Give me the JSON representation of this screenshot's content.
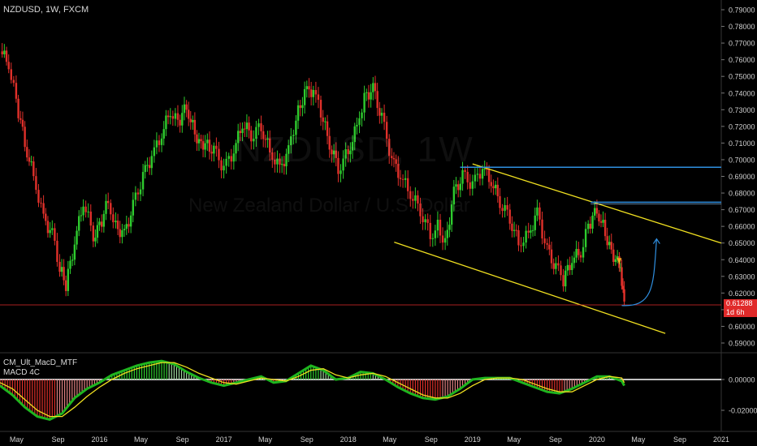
{
  "header": {
    "symbol_line": "NZDUSD, 1W, FXCM",
    "watermark_symbol": "NZDUSD, 1W",
    "watermark_name": "New Zealand Dollar / U.S. Dollar"
  },
  "indicator": {
    "name": "CM_Ult_MacD_MTF",
    "sub": "MACD 4C"
  },
  "price_tag": {
    "price": "0.61288",
    "countdown": "1d 6h"
  },
  "colors": {
    "background": "#000000",
    "up": "#2ecc2e",
    "down": "#e0302a",
    "channel": "#f0e020",
    "resistance": "#2f8fe0",
    "price_line": "#e02a2a",
    "macd_line": "#1fb51f",
    "signal_line": "#f0e020"
  },
  "chart_data": [
    {
      "type": "line",
      "title": "NZDUSD, 1W, FXCM",
      "y_axis": {
        "min": 0.585,
        "max": 0.795,
        "ticks": [
          "0.79000",
          "0.78000",
          "0.77000",
          "0.76000",
          "0.75000",
          "0.74000",
          "0.73000",
          "0.72000",
          "0.71000",
          "0.70000",
          "0.69000",
          "0.68000",
          "0.67000",
          "0.66000",
          "0.65000",
          "0.64000",
          "0.63000",
          "0.62000",
          "0.61000",
          "0.60000",
          "0.59000"
        ],
        "tick_values": [
          0.79,
          0.78,
          0.77,
          0.76,
          0.75,
          0.74,
          0.73,
          0.72,
          0.71,
          0.7,
          0.69,
          0.68,
          0.67,
          0.66,
          0.65,
          0.64,
          0.63,
          0.62,
          0.61,
          0.6,
          0.59
        ]
      },
      "x_axis": {
        "labels": [
          "May",
          "Sep",
          "2016",
          "May",
          "Sep",
          "2017",
          "May",
          "Sep",
          "2018",
          "May",
          "Sep",
          "2019",
          "May",
          "Sep",
          "2020",
          "May",
          "Sep",
          "2021"
        ],
        "label_time": [
          2015.333,
          2015.667,
          2016.0,
          2016.333,
          2016.667,
          2017.0,
          2017.333,
          2017.667,
          2018.0,
          2018.333,
          2018.667,
          2019.0,
          2019.333,
          2019.667,
          2020.0,
          2020.333,
          2020.667,
          2021.0
        ],
        "start": 2015.2,
        "end": 2021.0
      },
      "series": [
        {
          "name": "NZDUSD",
          "style": "candles",
          "x": [
            2015.2,
            2015.27,
            2015.33,
            2015.4,
            2015.47,
            2015.55,
            2015.62,
            2015.68,
            2015.73,
            2015.8,
            2015.87,
            2015.95,
            2016.0,
            2016.07,
            2016.13,
            2016.2,
            2016.27,
            2016.35,
            2016.42,
            2016.5,
            2016.57,
            2016.63,
            2016.7,
            2016.75,
            2016.8,
            2016.85,
            2016.92,
            2017.0,
            2017.08,
            2017.15,
            2017.22,
            2017.3,
            2017.37,
            2017.45,
            2017.52,
            2017.58,
            2017.65,
            2017.72,
            2017.78,
            2017.85,
            2017.92,
            2018.0,
            2018.07,
            2018.13,
            2018.2,
            2018.27,
            2018.35,
            2018.42,
            2018.5,
            2018.58,
            2018.66,
            2018.72,
            2018.78,
            2018.85,
            2018.92,
            2019.0,
            2019.08,
            2019.15,
            2019.22,
            2019.3,
            2019.37,
            2019.45,
            2019.52,
            2019.6,
            2019.67,
            2019.73,
            2019.8,
            2019.87,
            2019.93,
            2020.0,
            2020.05,
            2020.1,
            2020.15,
            2020.18,
            2020.2,
            2020.22
          ],
          "y": [
            0.765,
            0.758,
            0.735,
            0.71,
            0.69,
            0.665,
            0.655,
            0.635,
            0.625,
            0.65,
            0.675,
            0.655,
            0.66,
            0.675,
            0.66,
            0.655,
            0.672,
            0.69,
            0.702,
            0.715,
            0.73,
            0.722,
            0.732,
            0.72,
            0.71,
            0.71,
            0.705,
            0.695,
            0.705,
            0.722,
            0.715,
            0.72,
            0.705,
            0.695,
            0.705,
            0.725,
            0.74,
            0.742,
            0.728,
            0.71,
            0.695,
            0.705,
            0.72,
            0.738,
            0.742,
            0.725,
            0.7,
            0.69,
            0.68,
            0.67,
            0.655,
            0.66,
            0.65,
            0.68,
            0.69,
            0.685,
            0.695,
            0.687,
            0.675,
            0.665,
            0.65,
            0.655,
            0.668,
            0.645,
            0.635,
            0.628,
            0.64,
            0.645,
            0.66,
            0.67,
            0.66,
            0.648,
            0.64,
            0.638,
            0.625,
            0.613
          ]
        }
      ],
      "annotations": {
        "channel_upper": {
          "x": [
            2019.0,
            2021.0
          ],
          "y": [
            0.6975,
            0.65
          ]
        },
        "channel_lower": {
          "x": [
            2018.37,
            2020.55
          ],
          "y": [
            0.6505,
            0.5958
          ]
        },
        "resistance_1": {
          "x": [
            2018.9,
            2021.0
          ],
          "y": 0.6955
        },
        "resistance_2": {
          "x": [
            2019.95,
            2021.0
          ],
          "y": 0.6745
        },
        "current_price_line": 0.61288,
        "projection_arrow": {
          "x": [
            2020.2,
            2020.48
          ],
          "y": [
            0.6125,
            0.6525
          ]
        }
      }
    },
    {
      "type": "line",
      "title": "CM_Ult_MacD_MTF",
      "y_axis": {
        "ticks": [
          "0.00000",
          "-0.02000"
        ],
        "tick_values": [
          0.0,
          -0.02
        ],
        "min": -0.028,
        "max": 0.017
      },
      "series": [
        {
          "name": "MACD 4C",
          "style": "histogram",
          "x": [
            2015.2,
            2015.3,
            2015.4,
            2015.5,
            2015.6,
            2015.7,
            2015.8,
            2015.9,
            2016.0,
            2016.1,
            2016.2,
            2016.3,
            2016.4,
            2016.5,
            2016.6,
            2016.7,
            2016.8,
            2016.9,
            2017.0,
            2017.1,
            2017.2,
            2017.3,
            2017.4,
            2017.5,
            2017.6,
            2017.7,
            2017.8,
            2017.9,
            2018.0,
            2018.1,
            2018.2,
            2018.3,
            2018.4,
            2018.5,
            2018.6,
            2018.7,
            2018.8,
            2018.9,
            2019.0,
            2019.1,
            2019.2,
            2019.3,
            2019.4,
            2019.5,
            2019.6,
            2019.7,
            2019.8,
            2019.9,
            2020.0,
            2020.1,
            2020.2,
            2020.22
          ],
          "y": [
            -0.004,
            -0.01,
            -0.018,
            -0.024,
            -0.026,
            -0.022,
            -0.012,
            -0.006,
            -0.002,
            0.003,
            0.006,
            0.009,
            0.011,
            0.012,
            0.01,
            0.005,
            0.001,
            -0.002,
            -0.004,
            -0.002,
            0.0,
            0.002,
            -0.002,
            -0.001,
            0.004,
            0.009,
            0.006,
            0.0,
            0.001,
            0.005,
            0.004,
            0.0,
            -0.005,
            -0.009,
            -0.012,
            -0.013,
            -0.011,
            -0.006,
            0.0,
            0.001,
            0.001,
            0.001,
            -0.002,
            -0.005,
            -0.008,
            -0.009,
            -0.006,
            -0.002,
            0.002,
            0.002,
            -0.001,
            -0.004
          ]
        },
        {
          "name": "Signal",
          "style": "line",
          "x": [
            2015.2,
            2015.3,
            2015.4,
            2015.5,
            2015.6,
            2015.7,
            2015.8,
            2015.9,
            2016.0,
            2016.1,
            2016.2,
            2016.3,
            2016.4,
            2016.5,
            2016.6,
            2016.7,
            2016.8,
            2016.9,
            2017.0,
            2017.1,
            2017.2,
            2017.3,
            2017.4,
            2017.5,
            2017.6,
            2017.7,
            2017.8,
            2017.9,
            2018.0,
            2018.1,
            2018.2,
            2018.3,
            2018.4,
            2018.5,
            2018.6,
            2018.7,
            2018.8,
            2018.9,
            2019.0,
            2019.1,
            2019.2,
            2019.3,
            2019.4,
            2019.5,
            2019.6,
            2019.7,
            2019.8,
            2019.9,
            2020.0,
            2020.1,
            2020.2,
            2020.22
          ],
          "y": [
            -0.002,
            -0.006,
            -0.013,
            -0.02,
            -0.024,
            -0.024,
            -0.018,
            -0.011,
            -0.005,
            0.0,
            0.004,
            0.007,
            0.009,
            0.011,
            0.011,
            0.008,
            0.004,
            0.001,
            -0.002,
            -0.003,
            -0.001,
            0.001,
            0.0,
            -0.001,
            0.002,
            0.006,
            0.007,
            0.003,
            0.001,
            0.003,
            0.004,
            0.002,
            -0.002,
            -0.006,
            -0.01,
            -0.012,
            -0.012,
            -0.009,
            -0.004,
            0.0,
            0.001,
            0.001,
            0.0,
            -0.003,
            -0.006,
            -0.008,
            -0.008,
            -0.004,
            0.0,
            0.002,
            0.001,
            -0.002
          ]
        }
      ]
    }
  ]
}
